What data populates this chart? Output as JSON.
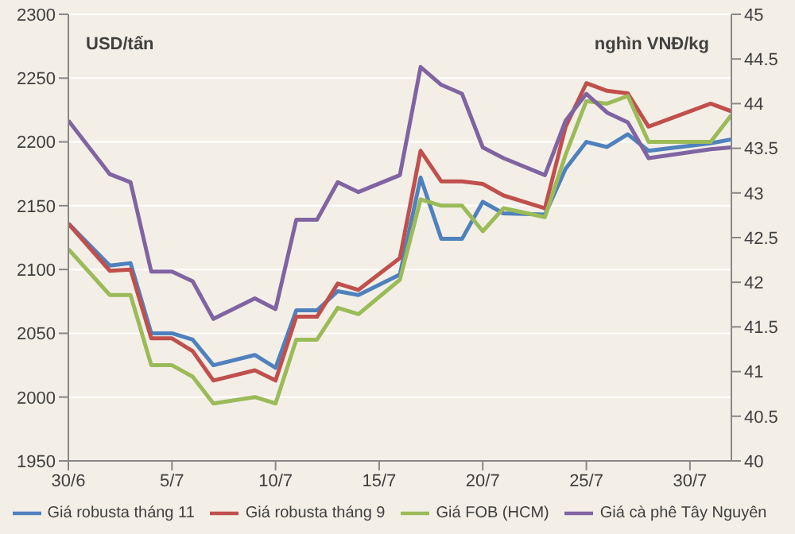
{
  "chart_data": {
    "type": "line",
    "ylabel": "USD/tấn",
    "y2label": "nghìn VNĐ/kg",
    "x": [
      "--06-30",
      "--07-02",
      "--07-03",
      "--07-04",
      "--07-05",
      "--07-06",
      "--07-07",
      "--07-09",
      "--07-10",
      "--07-11",
      "--07-12",
      "--07-13",
      "--07-14",
      "--07-16",
      "--07-17",
      "--07-18",
      "--07-19",
      "--07-20",
      "--07-21",
      "--07-23",
      "--07-24",
      "--07-25",
      "--07-26",
      "--07-27",
      "--07-28",
      "--07-31",
      "--08-01"
    ],
    "series": [
      {
        "name": "Giá robusta tháng 11",
        "color": "#4f81bd",
        "values": [
          2136,
          2103,
          2105,
          2050,
          2050,
          2045,
          2025,
          2033,
          2023,
          2068,
          2068,
          2083,
          2080,
          2096,
          2172,
          2124,
          2124,
          2153,
          2144,
          2143,
          2179,
          2200,
          2196,
          2206,
          2193,
          2199,
          2202
        ]
      },
      {
        "name": "Giá robusta tháng 9",
        "color": "#c0504d",
        "values": [
          2136,
          2099,
          2100,
          2046,
          2046,
          2036,
          2013,
          2021,
          2013,
          2063,
          2063,
          2089,
          2084,
          2109,
          2193,
          2169,
          2169,
          2167,
          2158,
          2148,
          2212,
          2246,
          2240,
          2238,
          2212,
          2230,
          2224
        ]
      },
      {
        "name": "Giá FOB (HCM)",
        "color": "#9bbb59",
        "values": [
          2116,
          2080,
          2080,
          2025,
          2025,
          2016,
          1995,
          2000,
          1995,
          2045,
          2045,
          2070,
          2065,
          2092,
          2155,
          2150,
          2150,
          2130,
          2148,
          2141,
          2190,
          2232,
          2230,
          2236,
          2200,
          2200,
          2221
        ]
      },
      {
        "name": "Giá cà phê Tây Nguyên",
        "color": "#8064a2",
        "axis": "y2",
        "values": [
          43.81,
          43.21,
          43.12,
          42.12,
          42.12,
          42.01,
          41.59,
          41.82,
          41.7,
          42.7,
          42.7,
          43.12,
          43.01,
          43.2,
          44.41,
          44.21,
          44.11,
          43.51,
          43.39,
          43.2,
          43.81,
          44.11,
          43.9,
          43.79,
          43.39,
          43.49,
          43.51
        ]
      }
    ],
    "xlim": [
      "--06-30",
      "--08-01"
    ],
    "xticks": [
      {
        "value": "--06-30",
        "label": "30/6"
      },
      {
        "value": "--07-05",
        "label": "5/7"
      },
      {
        "value": "--07-10",
        "label": "10/7"
      },
      {
        "value": "--07-15",
        "label": "15/7"
      },
      {
        "value": "--07-20",
        "label": "20/7"
      },
      {
        "value": "--07-25",
        "label": "25/7"
      },
      {
        "value": "--07-30",
        "label": "30/7"
      }
    ],
    "ylim": [
      1950,
      2300
    ],
    "yticks": [
      1950,
      2000,
      2050,
      2100,
      2150,
      2200,
      2250,
      2300
    ],
    "y2lim": [
      40,
      45
    ],
    "y2ticks": [
      40,
      40.5,
      41,
      41.5,
      42,
      42.5,
      43,
      43.5,
      44,
      44.5,
      45
    ],
    "grid": "y",
    "legend": "bottom",
    "marker": "none",
    "line_style": "solid"
  }
}
